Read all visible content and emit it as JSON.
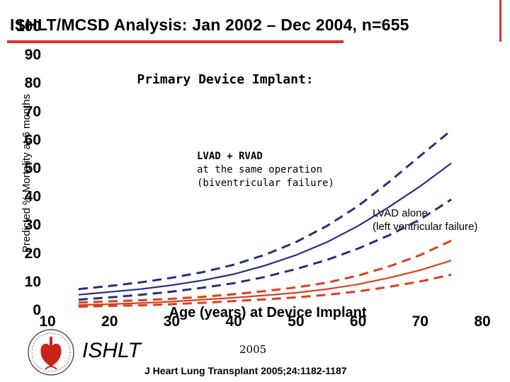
{
  "title": "ISHLT/MCSD Analysis:  Jan 2002 – Dec 2004, n=655",
  "footer": {
    "org": "ISHLT",
    "year": "2005",
    "citation": "J Heart Lung Transplant 2005;24:1182-1187"
  },
  "logo": {
    "icon": "ishlt-seal-icon"
  },
  "colors": {
    "accent": "#d9342a",
    "blue": "#2a2e7a",
    "red": "#d9401e"
  },
  "chart_data": {
    "type": "line",
    "title": "Primary Device Implant:",
    "xlabel": "Age (years) at Device Implant",
    "ylabel": "Predicted % Mortality at 6 months",
    "xlim": [
      10,
      80
    ],
    "ylim": [
      0,
      100
    ],
    "xticks": [
      "10",
      "20",
      "30",
      "40",
      "50",
      "60",
      "70",
      "80"
    ],
    "yticks": [
      "0",
      "10",
      "20",
      "30",
      "40",
      "50",
      "60",
      "70",
      "80",
      "90",
      "100"
    ],
    "annotations": [
      {
        "lines": [
          "LVAD + RVAD",
          "at the same operation",
          "(biventricular failure)"
        ],
        "x": 35,
        "y": 55
      },
      {
        "lines": [
          "LVAD alone",
          "(left ventricular failure)"
        ],
        "x": 62,
        "y": 33
      }
    ],
    "series": [
      {
        "name": "LVAD + RVAD",
        "color": "#2a2e7a",
        "style": "solid",
        "x": [
          15,
          20,
          25,
          30,
          35,
          40,
          45,
          50,
          55,
          60,
          65,
          70,
          75
        ],
        "y": [
          5.3,
          6.3,
          7.3,
          8.7,
          10.4,
          12.6,
          15.6,
          19.3,
          23.9,
          29.6,
          36.3,
          43.6,
          51.7
        ]
      },
      {
        "name": "LVAD + RVAD upper 95% CL",
        "color": "#2a2e7a",
        "style": "dashed",
        "x": [
          15,
          20,
          25,
          30,
          35,
          40,
          45,
          50,
          55,
          60,
          65,
          70,
          75
        ],
        "y": [
          7.3,
          8.4,
          9.7,
          11.3,
          13.3,
          15.9,
          19.4,
          23.9,
          29.6,
          36.6,
          45.1,
          54.3,
          63.3
        ]
      },
      {
        "name": "LVAD + RVAD lower 95% CL",
        "color": "#2a2e7a",
        "style": "dashed",
        "x": [
          15,
          20,
          25,
          30,
          35,
          40,
          45,
          50,
          55,
          60,
          65,
          70,
          75
        ],
        "y": [
          3.6,
          4.4,
          5.3,
          6.4,
          7.8,
          9.4,
          11.6,
          14.4,
          17.6,
          21.6,
          26.3,
          31.9,
          38.9
        ]
      },
      {
        "name": "LVAD alone",
        "color": "#d9401e",
        "style": "solid",
        "x": [
          15,
          20,
          25,
          30,
          35,
          40,
          45,
          50,
          55,
          60,
          65,
          70,
          75
        ],
        "y": [
          1.7,
          2.0,
          2.4,
          2.9,
          3.6,
          4.3,
          5.1,
          6.0,
          7.3,
          9.0,
          11.3,
          14.0,
          17.4
        ]
      },
      {
        "name": "LVAD alone upper 95% CL",
        "color": "#d9401e",
        "style": "dashed",
        "x": [
          15,
          20,
          25,
          30,
          35,
          40,
          45,
          50,
          55,
          60,
          65,
          70,
          75
        ],
        "y": [
          2.6,
          3.0,
          3.4,
          3.9,
          4.6,
          5.5,
          6.6,
          7.9,
          9.6,
          12.1,
          15.3,
          19.3,
          24.4
        ]
      },
      {
        "name": "LVAD alone lower 95% CL",
        "color": "#d9401e",
        "style": "dashed",
        "x": [
          15,
          20,
          25,
          30,
          35,
          40,
          45,
          50,
          55,
          60,
          65,
          70,
          75
        ],
        "y": [
          1.1,
          1.4,
          1.6,
          2.0,
          2.5,
          3.1,
          3.7,
          4.4,
          5.3,
          6.5,
          8.1,
          10.0,
          12.4
        ]
      }
    ],
    "grid": false,
    "legend": "none"
  }
}
